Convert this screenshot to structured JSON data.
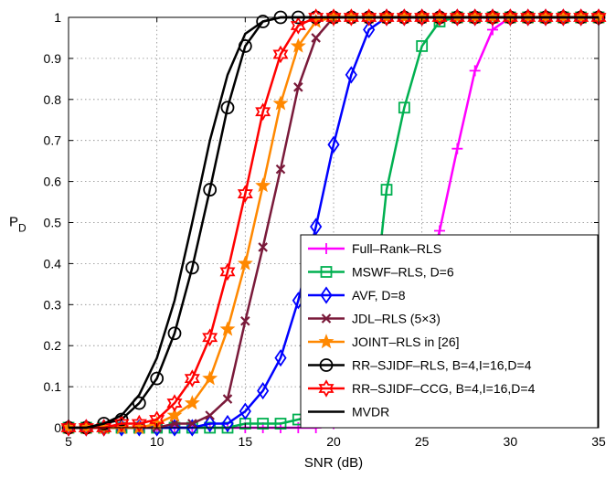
{
  "chart_data": {
    "type": "line",
    "xlabel": "SNR (dB)",
    "ylabel_main": "P",
    "ylabel_sub": "D",
    "xlim": [
      5,
      35
    ],
    "ylim": [
      0,
      1
    ],
    "xticks": [
      5,
      10,
      15,
      20,
      25,
      30,
      35
    ],
    "yticks": [
      0,
      0.1,
      0.2,
      0.3,
      0.4,
      0.5,
      0.6,
      0.7,
      0.8,
      0.9,
      1
    ],
    "xtick_labels": [
      "5",
      "10",
      "15",
      "20",
      "25",
      "30",
      "35"
    ],
    "ytick_labels": [
      "0",
      "0.1",
      "0.2",
      "0.3",
      "0.4",
      "0.5",
      "0.6",
      "0.7",
      "0.8",
      "0.9",
      "1"
    ],
    "grid": true,
    "legend_position": "bottom-right",
    "x": [
      5,
      6,
      7,
      8,
      9,
      10,
      11,
      12,
      13,
      14,
      15,
      16,
      17,
      18,
      19,
      20,
      21,
      22,
      23,
      24,
      25,
      26,
      27,
      28,
      29,
      30,
      31,
      32,
      33,
      34,
      35
    ],
    "series": [
      {
        "name": "Full–Rank–RLS",
        "color": "#ff00ff",
        "marker": "plus",
        "values": [
          0,
          0,
          0,
          0,
          0,
          0,
          0,
          0,
          0,
          0,
          0,
          0,
          0,
          0,
          0,
          0.01,
          0.02,
          0.04,
          0.09,
          0.18,
          0.31,
          0.48,
          0.68,
          0.87,
          0.97,
          1,
          1,
          1,
          1,
          1,
          1
        ]
      },
      {
        "name": "MSWF–RLS, D=6",
        "color": "#00b050",
        "marker": "square",
        "values": [
          0,
          0,
          0,
          0,
          0,
          0,
          0,
          0,
          0,
          0,
          0.01,
          0.01,
          0.01,
          0.02,
          0.03,
          0.05,
          0.1,
          0.18,
          0.58,
          0.78,
          0.93,
          0.99,
          1,
          1,
          1,
          1,
          1,
          1,
          1,
          1,
          1
        ]
      },
      {
        "name": "AVF, D=8",
        "color": "#0000ff",
        "marker": "diamond",
        "values": [
          0,
          0,
          0,
          0,
          0,
          0,
          0,
          0,
          0.01,
          0.01,
          0.04,
          0.09,
          0.17,
          0.31,
          0.49,
          0.69,
          0.86,
          0.97,
          1,
          1,
          1,
          1,
          1,
          1,
          1,
          1,
          1,
          1,
          1,
          1,
          1
        ]
      },
      {
        "name": "JDL–RLS (5×3)",
        "color": "#7a1a3a",
        "marker": "x",
        "values": [
          0,
          0,
          0,
          0,
          0,
          0,
          0.01,
          0.01,
          0.03,
          0.07,
          0.26,
          0.44,
          0.63,
          0.83,
          0.95,
          1,
          1,
          1,
          1,
          1,
          1,
          1,
          1,
          1,
          1,
          1,
          1,
          1,
          1,
          1,
          1
        ]
      },
      {
        "name": "JOINT–RLS in [26]",
        "color": "#ff8800",
        "marker": "star",
        "values": [
          0,
          0,
          0,
          0,
          0,
          0.01,
          0.03,
          0.06,
          0.12,
          0.24,
          0.4,
          0.59,
          0.79,
          0.93,
          0.99,
          1,
          1,
          1,
          1,
          1,
          1,
          1,
          1,
          1,
          1,
          1,
          1,
          1,
          1,
          1,
          1
        ]
      },
      {
        "name": "RR–SJIDF–RLS, B=4,I=16,D=4",
        "color": "#000000",
        "marker": "circle",
        "values": [
          0,
          0,
          0.01,
          0.02,
          0.06,
          0.12,
          0.23,
          0.39,
          0.58,
          0.78,
          0.93,
          0.99,
          1,
          1,
          1,
          1,
          1,
          1,
          1,
          1,
          1,
          1,
          1,
          1,
          1,
          1,
          1,
          1,
          1,
          1,
          1
        ]
      },
      {
        "name": "RR–SJIDF–CCG, B=4,I=16,D=4",
        "color": "#ff0000",
        "marker": "hexagram",
        "values": [
          0,
          0,
          0,
          0.01,
          0.01,
          0.02,
          0.06,
          0.12,
          0.22,
          0.38,
          0.57,
          0.77,
          0.91,
          0.98,
          1,
          1,
          1,
          1,
          1,
          1,
          1,
          1,
          1,
          1,
          1,
          1,
          1,
          1,
          1,
          1,
          1
        ]
      },
      {
        "name": "MVDR",
        "color": "#000000",
        "marker": "none",
        "values": [
          0,
          0,
          0.01,
          0.03,
          0.08,
          0.17,
          0.31,
          0.5,
          0.7,
          0.86,
          0.96,
          0.99,
          1,
          1,
          1,
          1,
          1,
          1,
          1,
          1,
          1,
          1,
          1,
          1,
          1,
          1,
          1,
          1,
          1,
          1,
          1
        ]
      }
    ]
  }
}
